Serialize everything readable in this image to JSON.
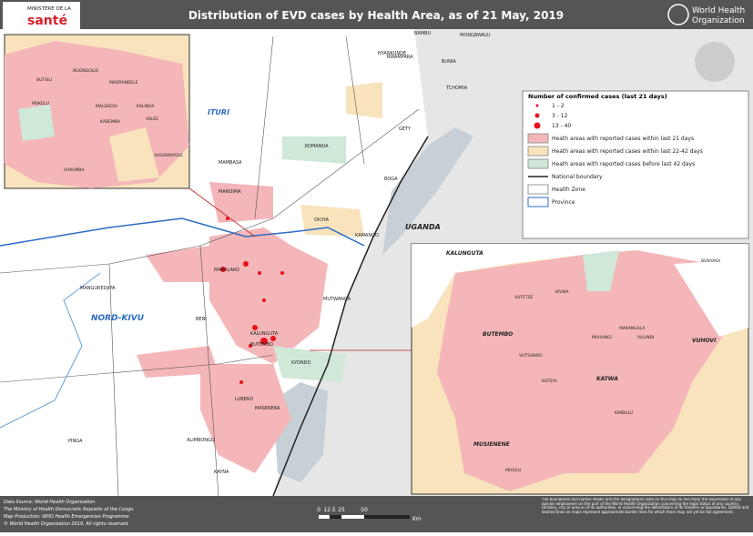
{
  "header": {
    "title": "Distribution of EVD cases by Health Area, as of 21 May, 2019",
    "ministry_top": "MINISTÈRE DE LA",
    "ministry_name": "santé",
    "who_line1": "World Health",
    "who_line2": "Organization"
  },
  "legend": {
    "title": "Number of confirmed cases (last 21 days)",
    "items": [
      "1 - 2",
      "3 - 12",
      "13 - 40",
      "Heath areas with reported cases within last 21 days",
      "Heath areas with reported cases within last 22-42 days",
      "Heath areas with reported cases before last 42 days",
      "National boundary",
      "Health Zone",
      "Province"
    ]
  },
  "map": {
    "labels": [
      "ITURI",
      "NORD-KIVU",
      "UGANDA",
      "MANGUREDJIPA",
      "MANDIMA",
      "MABALAKO",
      "KOMANDA",
      "MAMBASA",
      "OICHA",
      "KAMANGO",
      "MUTWANGA",
      "BENI",
      "KALUNGUTA",
      "BUTEMBO",
      "KYONDO",
      "MASEREKA",
      "LUBERO",
      "ALIMBONGO",
      "KAYNA",
      "PINGA",
      "NYANKUNDE",
      "RWAMPARA",
      "BUNIA",
      "TCHOMIA",
      "GETY",
      "BOGA",
      "BAMBU",
      "MONGBWALU"
    ]
  },
  "inset_left": {
    "labels": [
      "BUTSILI",
      "NGONGOLIO",
      "MADRANDELE",
      "MALEKESA",
      "KALINDA",
      "VALEE",
      "KABEMBA",
      "VUKUMBA",
      "MUKULU",
      "KASABINYOLE"
    ]
  },
  "inset_right": {
    "labels": [
      "KALUNGUTA",
      "BUTEMBO",
      "KATWA",
      "MUSIENENE",
      "VUHOVI",
      "BUNYAKA",
      "VUTSUNDO",
      "MUHANGI",
      "KATSYA",
      "VUTETSE",
      "MAKANGALA",
      "KIVIKA",
      "KIMBULU",
      "VULINDI",
      "MUSOLI"
    ]
  },
  "footer": {
    "lines": [
      "Data Source: World Health Organization",
      "The Ministry of Health Democratic Republic of the Congo",
      "Map Production: WHO Health Emergencies Programme",
      "© World Health Organization 2019, All rights reserved."
    ],
    "disclaimer": "The boundaries and names shown and the designations used on this map do not imply the expression of any opinion whatsoever on the part of the World Health Organization concerning the legal status of any country, territory, city or area or of its authorities, or concerning the delimitation of its frontiers or boundaries. Dotted and dashed lines on maps represent approximate border lines for which there may not yet be full agreement.",
    "scale": [
      "0",
      "12.5",
      "25",
      "50",
      "Km"
    ]
  }
}
